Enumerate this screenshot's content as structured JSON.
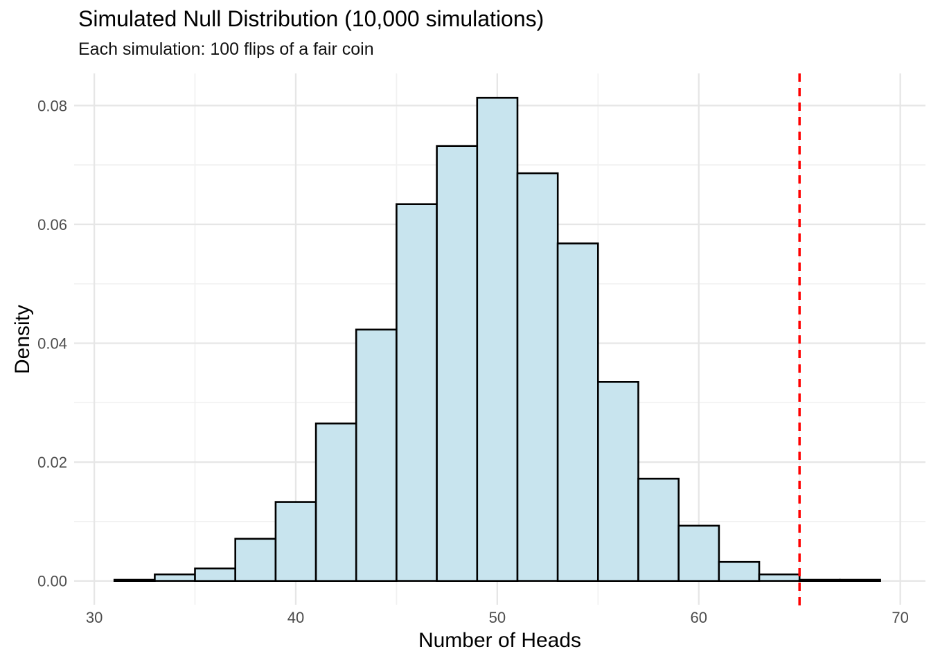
{
  "chart_data": {
    "type": "bar",
    "subtype": "histogram",
    "title": "Simulated Null Distribution (10,000 simulations)",
    "subtitle": "Each simulation: 100 flips of a fair coin",
    "xlabel": "Number of Heads",
    "ylabel": "Density",
    "bin_width": 2,
    "bin_edges": [
      31,
      33,
      35,
      37,
      39,
      41,
      43,
      45,
      47,
      49,
      51,
      53,
      55,
      57,
      59,
      61,
      63,
      65,
      67,
      69
    ],
    "densities": [
      0.0002,
      0.0011,
      0.0021,
      0.0071,
      0.0133,
      0.0265,
      0.0423,
      0.0634,
      0.0732,
      0.0813,
      0.0686,
      0.0568,
      0.0335,
      0.0172,
      0.0093,
      0.0032,
      0.0011,
      0.0002,
      0.0002
    ],
    "xlim": [
      29.0,
      71.25
    ],
    "ylim": [
      -0.004,
      0.0854
    ],
    "x_ticks": [
      {
        "value": 30,
        "label": "30"
      },
      {
        "value": 40,
        "label": "40"
      },
      {
        "value": 50,
        "label": "50"
      },
      {
        "value": 60,
        "label": "60"
      },
      {
        "value": 70,
        "label": "70"
      }
    ],
    "x_minor_ticks": [
      35,
      45,
      55,
      65
    ],
    "y_ticks": [
      {
        "value": 0.0,
        "label": "0.00"
      },
      {
        "value": 0.02,
        "label": "0.02"
      },
      {
        "value": 0.04,
        "label": "0.04"
      },
      {
        "value": 0.06,
        "label": "0.06"
      },
      {
        "value": 0.08,
        "label": "0.08"
      }
    ],
    "y_minor_ticks": [
      0.01,
      0.03,
      0.05,
      0.07
    ],
    "vline": {
      "x": 65,
      "style": "dashed",
      "color": "#ff0000"
    },
    "grid": true,
    "legend": false,
    "colors": {
      "background": "#ffffff",
      "bar_fill": "#c8e4ee",
      "bar_stroke": "#000000",
      "grid_major": "#e6e6e6",
      "grid_minor": "#f1f1f1",
      "tick_text": "#4d4d4d",
      "text": "#000000",
      "vline": "#ff0000"
    }
  }
}
